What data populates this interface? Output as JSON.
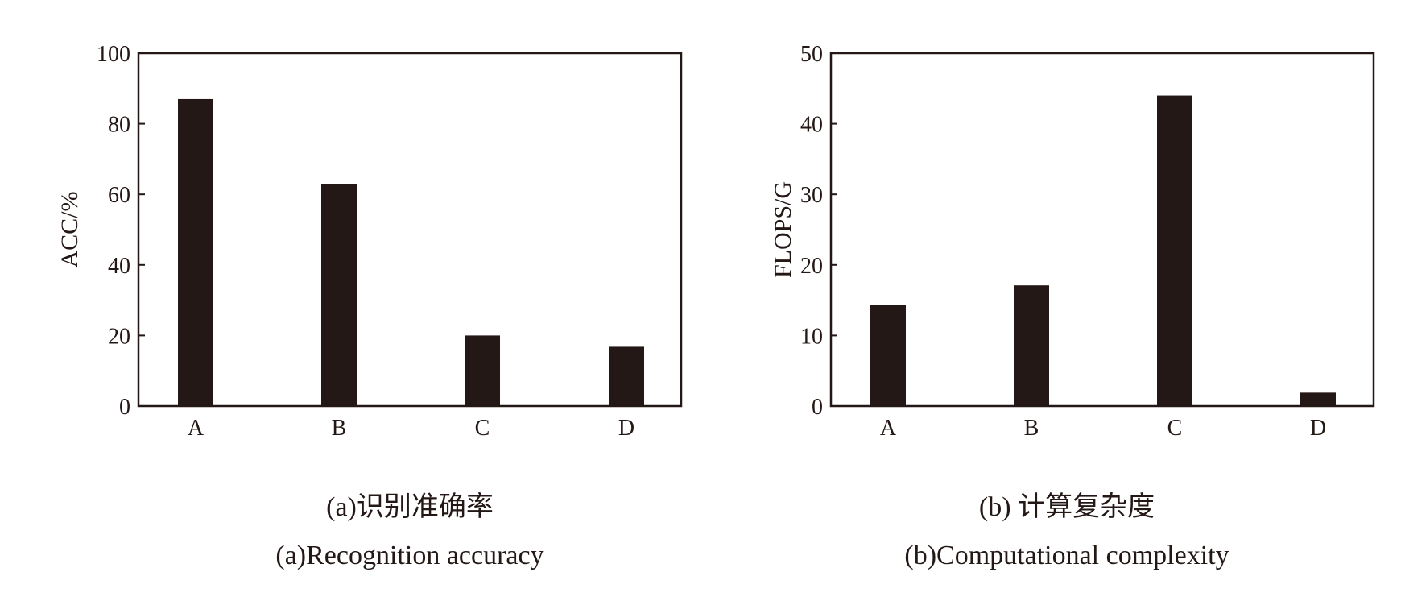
{
  "chart_data": [
    {
      "type": "bar",
      "categories": [
        "A",
        "B",
        "C",
        "D"
      ],
      "values": [
        87,
        63,
        20,
        16.8
      ],
      "ylabel": "ACC/%",
      "ylim": [
        0,
        100
      ],
      "yticks": [
        "0",
        "20",
        "40",
        "60",
        "80",
        "100"
      ],
      "caption_cn": "(a)识别准确率",
      "caption_en": "(a)Recognition accuracy",
      "grid": false,
      "bar_color": "#231815"
    },
    {
      "type": "bar",
      "categories": [
        "A",
        "B",
        "C",
        "D"
      ],
      "values": [
        14.3,
        17.1,
        44,
        1.9
      ],
      "ylabel": "FLOPS/G",
      "ylim": [
        0,
        50
      ],
      "yticks": [
        "0",
        "10",
        "20",
        "30",
        "40",
        "50"
      ],
      "caption_cn": "(b) 计算复杂度",
      "caption_en": "(b)Computational complexity",
      "grid": false,
      "bar_color": "#231815"
    }
  ]
}
